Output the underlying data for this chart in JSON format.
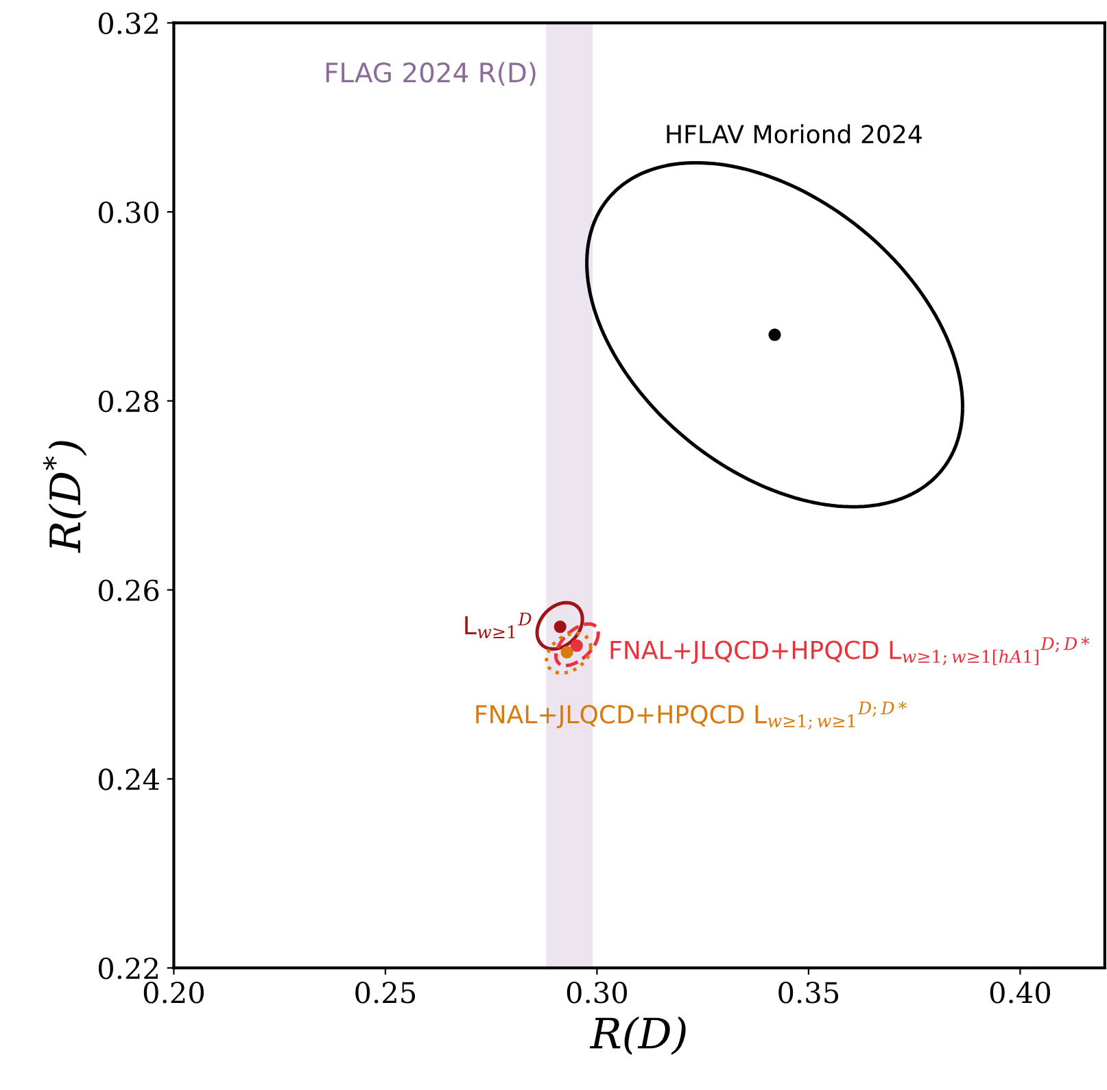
{
  "chart_data": {
    "type": "scatter",
    "xlabel": "R(D)",
    "ylabel": "R(D$^{*}$)",
    "xlim": [
      0.2,
      0.42
    ],
    "ylim": [
      0.22,
      0.32
    ],
    "xticks": [
      {
        "value": 0.2,
        "label": "0.20"
      },
      {
        "value": 0.25,
        "label": "0.25"
      },
      {
        "value": 0.3,
        "label": "0.30"
      },
      {
        "value": 0.35,
        "label": "0.35"
      },
      {
        "value": 0.4,
        "label": "0.40"
      }
    ],
    "yticks": [
      {
        "value": 0.22,
        "label": "0.22"
      },
      {
        "value": 0.24,
        "label": "0.24"
      },
      {
        "value": 0.26,
        "label": "0.26"
      },
      {
        "value": 0.28,
        "label": "0.28"
      },
      {
        "value": 0.3,
        "label": "0.30"
      },
      {
        "value": 0.32,
        "label": "0.32"
      }
    ],
    "grid": false,
    "marker": "circle",
    "bands": [
      {
        "axis": "x",
        "from": 0.288,
        "to": 0.299,
        "label": "FLAG 2024 R(D)",
        "color": "#ece5ef"
      }
    ],
    "series": [
      {
        "color": "#000000",
        "x": [
          0.342
        ],
        "values": [
          0.287
        ]
      },
      {
        "color": "#a01418",
        "x": [
          0.2913
        ],
        "values": [
          0.2561
        ]
      },
      {
        "color": "#e8323c",
        "x": [
          0.2952
        ],
        "values": [
          0.2541
        ]
      },
      {
        "color": "#d97a10",
        "x": [
          0.2929
        ],
        "values": [
          0.2534
        ]
      }
    ],
    "annotations": [
      "HFLAV Moriond 2024",
      {
        "text": "L$_{w≥1}$$^{D}$",
        "x": 0.2913,
        "y": 0.2561
      },
      {
        "text": "FNAL+JLQCD+HPQCD L$_{w≥1;w≥1[hA1]}$$^{D;D*}$",
        "x": 0.2952,
        "y": 0.2541
      },
      {
        "text": "FNAL+JLQCD+HPQCD L$_{w≥1;w≥1}$$^{D;D*}$",
        "x": 0.2929,
        "y": 0.2534
      }
    ]
  }
}
